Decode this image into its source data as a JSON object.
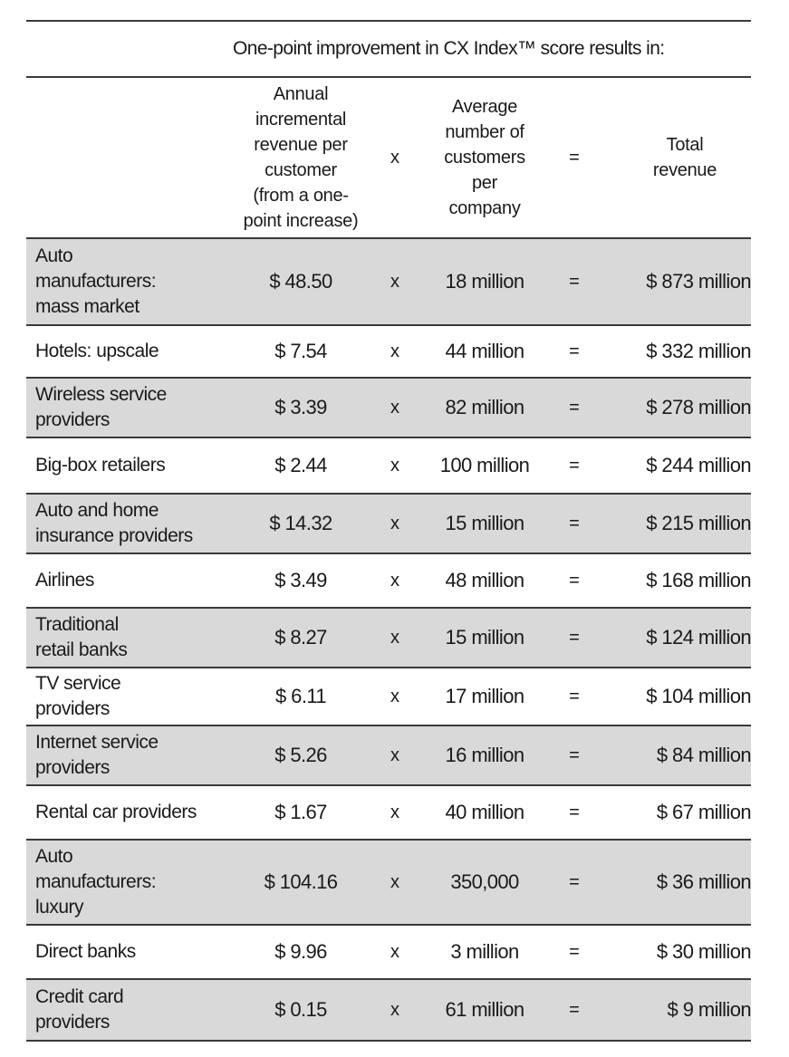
{
  "table": {
    "super_header": "One-point improvement in CX Index™ score results in:",
    "columns": {
      "revenue_per_customer": "Annual\nincremental\nrevenue per\ncustomer\n(from a one-\npoint increase)",
      "times": "x",
      "customers": "Average\nnumber of\ncustomers\nper\ncompany",
      "equals": "=",
      "total": "Total\nrevenue"
    },
    "rows": [
      {
        "industry": "Auto\nmanufacturers:\nmass market",
        "revenue": "$ 48.50",
        "times": "x",
        "customers": "18 million",
        "equals": "=",
        "total": "$ 873 million"
      },
      {
        "industry": "Hotels: upscale",
        "revenue": "$ 7.54",
        "times": "x",
        "customers": "44 million",
        "equals": "=",
        "total": "$ 332 million"
      },
      {
        "industry": "Wireless service\nproviders",
        "revenue": "$ 3.39",
        "times": "x",
        "customers": "82 million",
        "equals": "=",
        "total": "$ 278 million"
      },
      {
        "industry": "Big-box retailers",
        "revenue": "$ 2.44",
        "times": "x",
        "customers": "100 million",
        "equals": "=",
        "total": "$ 244 million"
      },
      {
        "industry": "Auto and home\ninsurance providers",
        "revenue": "$ 14.32",
        "times": "x",
        "customers": "15 million",
        "equals": "=",
        "total": "$ 215 million"
      },
      {
        "industry": "Airlines",
        "revenue": "$ 3.49",
        "times": "x",
        "customers": "48 million",
        "equals": "=",
        "total": "$ 168 million"
      },
      {
        "industry": "Traditional\nretail banks",
        "revenue": "$ 8.27",
        "times": "x",
        "customers": "15 million",
        "equals": "=",
        "total": "$ 124 million"
      },
      {
        "industry": "TV service\nproviders",
        "revenue": "$ 6.11",
        "times": "x",
        "customers": "17 million",
        "equals": "=",
        "total": "$ 104 million"
      },
      {
        "industry": "Internet service\nproviders",
        "revenue": "$ 5.26",
        "times": "x",
        "customers": "16 million",
        "equals": "=",
        "total": "$ 84 million"
      },
      {
        "industry": "Rental car providers",
        "revenue": "$ 1.67",
        "times": "x",
        "customers": "40 million",
        "equals": "=",
        "total": "$ 67 million"
      },
      {
        "industry": "Auto\nmanufacturers:\nluxury",
        "revenue": "$ 104.16",
        "times": "x",
        "customers": "350,000",
        "equals": "=",
        "total": "$ 36 million"
      },
      {
        "industry": "Direct banks",
        "revenue": "$ 9.96",
        "times": "x",
        "customers": "3 million",
        "equals": "=",
        "total": "$ 30 million"
      },
      {
        "industry": "Credit card\nproviders",
        "revenue": "$ 0.15",
        "times": "x",
        "customers": "61 million",
        "equals": "=",
        "total": "$ 9 million"
      }
    ]
  }
}
